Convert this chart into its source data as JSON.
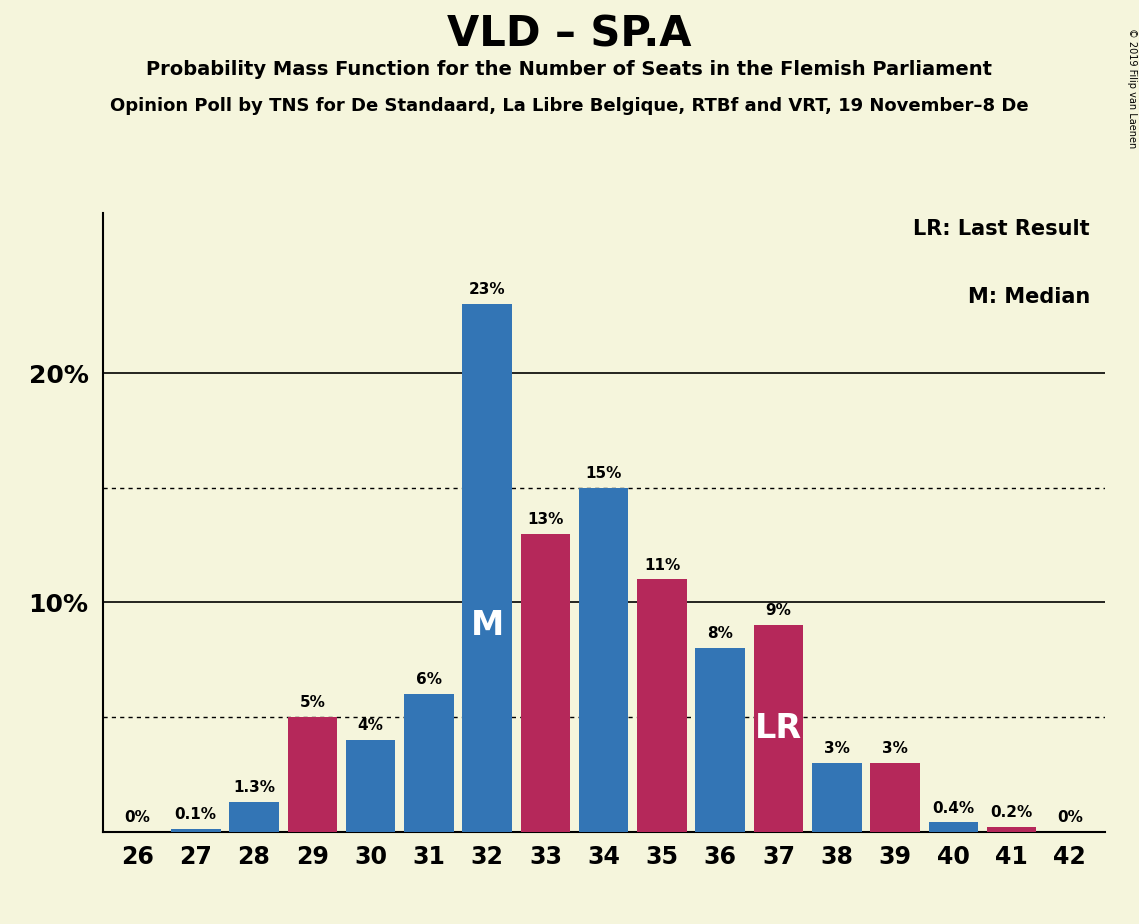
{
  "title": "VLD – SP.A",
  "subtitle1": "Probability Mass Function for the Number of Seats in the Flemish Parliament",
  "subtitle2": "Opinion Poll by TNS for De Standaard, La Libre Belgique, RTBf and VRT, 19 November–8 De",
  "copyright": "© 2019 Filip van Laenen",
  "seats": [
    26,
    27,
    28,
    29,
    30,
    31,
    32,
    33,
    34,
    35,
    36,
    37,
    38,
    39,
    40,
    41,
    42
  ],
  "blue_values": [
    0.0,
    0.1,
    1.3,
    0.0,
    4.0,
    6.0,
    23.0,
    0.0,
    15.0,
    0.0,
    8.0,
    0.0,
    3.0,
    0.0,
    0.4,
    0.0,
    0.0
  ],
  "red_values": [
    0.0,
    0.0,
    0.0,
    5.0,
    0.0,
    0.0,
    0.0,
    13.0,
    0.0,
    11.0,
    0.0,
    9.0,
    0.0,
    3.0,
    0.0,
    0.2,
    0.0
  ],
  "blue_labels": [
    "0%",
    "0.1%",
    "1.3%",
    "",
    "4%",
    "6%",
    "23%",
    "",
    "15%",
    "",
    "8%",
    "",
    "3%",
    "",
    "0.4%",
    "",
    "0%"
  ],
  "red_labels": [
    "",
    "",
    "",
    "5%",
    "",
    "",
    "",
    "13%",
    "",
    "11%",
    "",
    "9%",
    "",
    "3%",
    "",
    "0.2%",
    ""
  ],
  "blue_color": "#3375b5",
  "red_color": "#b5285a",
  "background_color": "#f5f5dc",
  "median_seat": 32,
  "lr_seat": 37,
  "median_label": "M",
  "lr_label": "LR",
  "legend_lr": "LR: Last Result",
  "legend_m": "M: Median",
  "ylim": [
    0,
    27
  ],
  "dotted_lines": [
    5.0,
    15.0
  ],
  "solid_lines": [
    10.0,
    20.0
  ],
  "ytick_positions": [
    10,
    20
  ],
  "ytick_labels": [
    "10%",
    "20%"
  ]
}
